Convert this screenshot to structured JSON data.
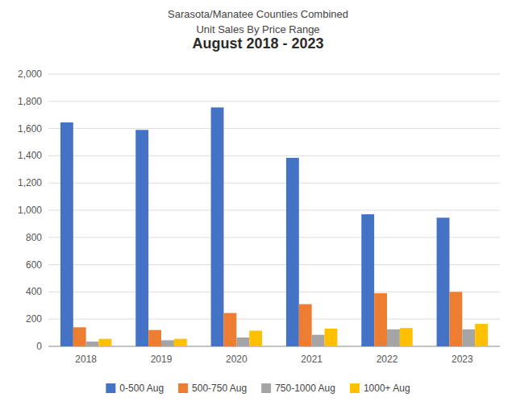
{
  "chart_data": {
    "type": "bar",
    "title": [
      "Sarasota/Manatee Counties Combined",
      "Unit Sales By Price Range",
      "August 2018 - 2023"
    ],
    "categories": [
      "2018",
      "2019",
      "2020",
      "2021",
      "2022",
      "2023"
    ],
    "series": [
      {
        "name": "0-500 Aug",
        "color": "#4472C4",
        "values": [
          1645,
          1590,
          1755,
          1385,
          970,
          945
        ]
      },
      {
        "name": "500-750 Aug",
        "color": "#ED7D31",
        "values": [
          140,
          120,
          245,
          310,
          390,
          400
        ]
      },
      {
        "name": "750-1000 Aug",
        "color": "#A5A5A5",
        "values": [
          35,
          45,
          65,
          85,
          125,
          125
        ]
      },
      {
        "name": "1000+ Aug",
        "color": "#FFC000",
        "values": [
          55,
          55,
          115,
          130,
          135,
          165
        ]
      }
    ],
    "ylim": [
      0,
      2000
    ],
    "yticks": [
      0,
      200,
      400,
      600,
      800,
      {
        "value": 1000,
        "label": "1,000"
      },
      {
        "value": 1200,
        "label": "1,200"
      },
      {
        "value": 1400,
        "label": "1,400"
      },
      {
        "value": 1600,
        "label": "1,600"
      },
      {
        "value": 1800,
        "label": "1,800"
      },
      {
        "value": 2000,
        "label": "2,000"
      }
    ],
    "grid": true,
    "legend": "bottom"
  }
}
